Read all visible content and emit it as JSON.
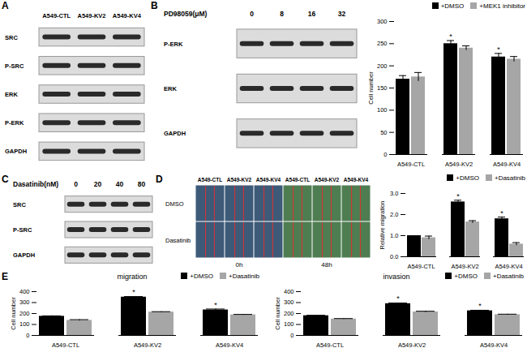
{
  "panel_labels": [
    "A",
    "B",
    "C",
    "D",
    "E"
  ],
  "blots": [
    {
      "columns": [
        "A549-CTL",
        "A549-KV2",
        "A549-KV4"
      ],
      "rows": [
        "SRC",
        "P-SRC",
        "ERK",
        "P-ERK",
        "GAPDH"
      ]
    },
    {
      "column_title": "PD98059(μM)",
      "columns": [
        0,
        8,
        16,
        32
      ],
      "rows": [
        "P-ERK",
        "ERK",
        "GAPDH"
      ]
    },
    {
      "column_title": "Dasatinib(nM)",
      "columns": [
        0,
        20,
        40,
        80
      ],
      "rows": [
        "SRC",
        "P-SRC",
        "GAPDH"
      ]
    }
  ],
  "images": {
    "columns": [
      "A549-CTL",
      "A549-KV2",
      "A549-KV4"
    ],
    "rows": [
      "DMSO",
      "Dasatinib"
    ],
    "times": [
      "0h",
      "48h"
    ]
  },
  "chart_data": [
    {
      "type": "bar",
      "categories": [
        "A549-CTL",
        "A549-KV2",
        "A549-KV4"
      ],
      "series": [
        {
          "name": "+DMSO",
          "color": "#000000",
          "values": [
            170,
            250,
            220
          ],
          "errors": [
            8,
            7,
            8
          ],
          "annotations": [
            null,
            "*",
            "*"
          ]
        },
        {
          "name": "+MEK1 inhibitor",
          "color": "#a6a6a6",
          "values": [
            175,
            240,
            215
          ],
          "errors": [
            10,
            5,
            6
          ]
        }
      ],
      "ylabel": "Cell number",
      "ylim": [
        0,
        300
      ],
      "yticks": [
        0,
        50,
        100,
        150,
        200,
        250,
        300
      ],
      "legend": "top-right"
    },
    {
      "type": "bar",
      "categories": [
        "A549-CTL",
        "A549-KV2",
        "A549-KV4"
      ],
      "series": [
        {
          "name": "+DMSO",
          "color": "#000000",
          "values": [
            1,
            2.6,
            1.8
          ],
          "errors": [
            0,
            0.08,
            0.08
          ],
          "annotations": [
            null,
            "*",
            "*"
          ]
        },
        {
          "name": "+Dasatinib",
          "color": "#a6a6a6",
          "values": [
            0.9,
            1.65,
            0.6
          ],
          "errors": [
            0.08,
            0.06,
            0.07
          ]
        }
      ],
      "ylabel": "Relative migration",
      "ylim": [
        0,
        3
      ],
      "yticks": [
        0,
        1,
        2,
        3
      ],
      "legend": "top-right"
    },
    {
      "type": "bar",
      "title": "migration",
      "categories": [
        "A549-CTL",
        "A549-KV2",
        "A549-KV4"
      ],
      "series": [
        {
          "name": "+DMSO",
          "color": "#000000",
          "values": [
            175,
            350,
            233
          ],
          "errors": [
            4,
            5,
            8
          ],
          "annotations": [
            null,
            "*",
            "*"
          ]
        },
        {
          "name": "+Dasatinib",
          "color": "#a6a6a6",
          "values": [
            138,
            213,
            188
          ],
          "errors": [
            6,
            4,
            4
          ]
        }
      ],
      "ylabel": "Cell number",
      "ylim": [
        0,
        400
      ],
      "yticks": [
        0,
        100,
        200,
        300,
        400
      ],
      "legend": "top-right"
    },
    {
      "type": "bar",
      "title": "invasion",
      "categories": [
        "A549-CTL",
        "A549-KV2",
        "A549-KV4"
      ],
      "series": [
        {
          "name": "+DMSO",
          "color": "#000000",
          "values": [
            180,
            290,
            225
          ],
          "errors": [
            4,
            6,
            5
          ],
          "annotations": [
            null,
            "*",
            "*"
          ]
        },
        {
          "name": "+Dasatinib",
          "color": "#a6a6a6",
          "values": [
            150,
            215,
            190
          ],
          "errors": [
            4,
            6,
            4
          ]
        }
      ],
      "ylabel": "Cell number",
      "ylim": [
        0,
        400
      ],
      "yticks": [
        0,
        100,
        200,
        300,
        400
      ],
      "legend": "top-right"
    }
  ]
}
